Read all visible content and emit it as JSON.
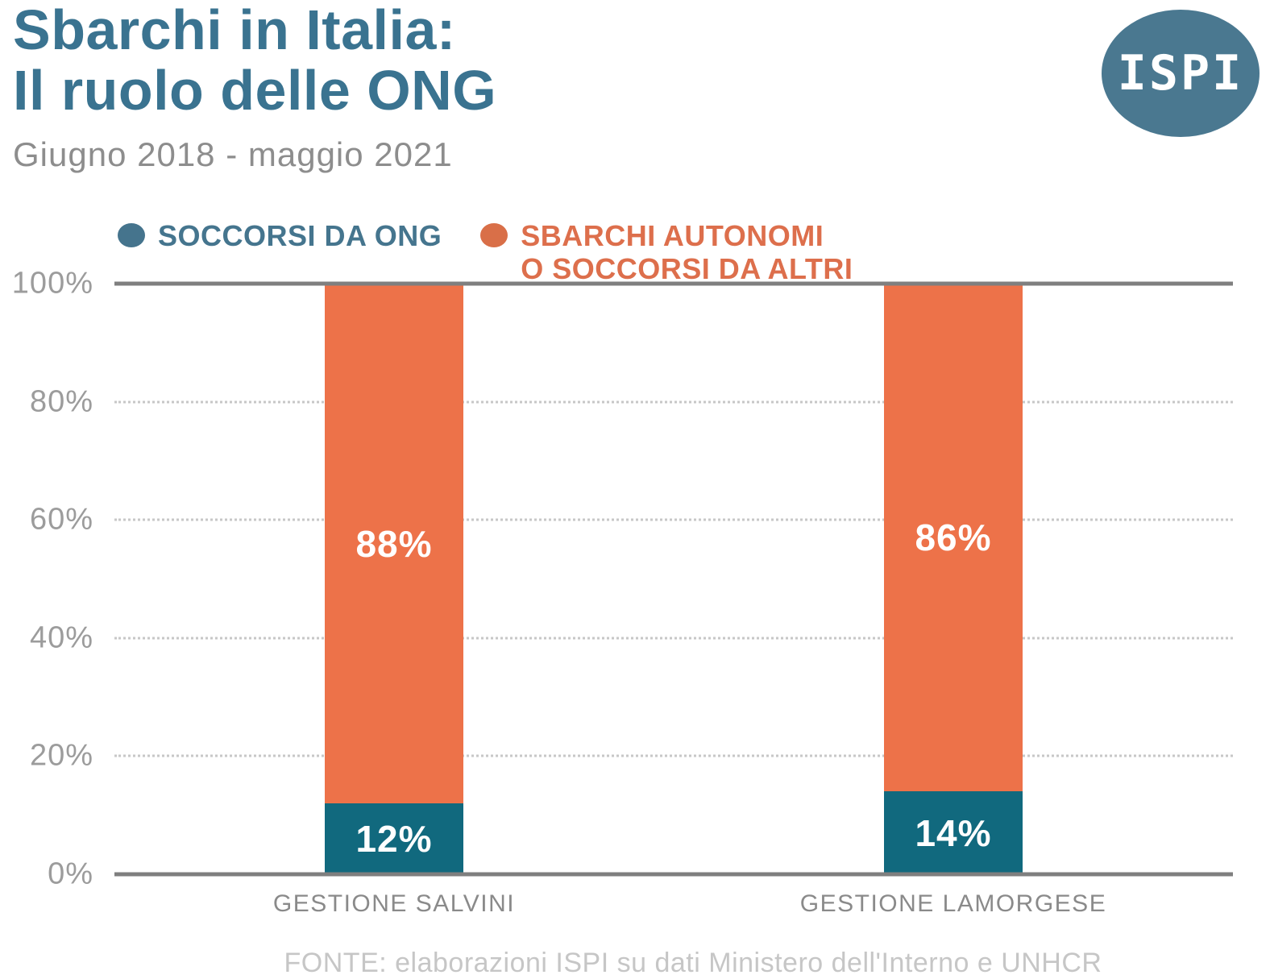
{
  "header": {
    "title_line1": "Sbarchi in Italia:",
    "title_line2": "Il ruolo delle ONG",
    "subtitle": "Giugno 2018 - maggio 2021",
    "logo_text": "ISPI",
    "title_color": "#3a7390",
    "logo_color": "#4a7890"
  },
  "legend": {
    "items": [
      {
        "label": "SOCCORSI DA ONG",
        "dot_color": "#45748d",
        "text_color": "#45758e"
      },
      {
        "label": "SBARCHI AUTONOMI\nO SOCCORSI DA ALTRI",
        "dot_color": "#d96f48",
        "text_color": "#dd6f4c"
      }
    ]
  },
  "chart_data": {
    "type": "bar",
    "stacked": true,
    "title": "Sbarchi in Italia: Il ruolo delle ONG",
    "subtitle": "Giugno 2018 - maggio 2021",
    "categories": [
      "GESTIONE SALVINI",
      "GESTIONE LAMORGESE"
    ],
    "series": [
      {
        "name": "SOCCORSI DA ONG",
        "color": "#11697e",
        "values": [
          12,
          14
        ]
      },
      {
        "name": "SBARCHI AUTONOMI O SOCCORSI DA ALTRI",
        "color": "#ed7249",
        "values": [
          88,
          86
        ]
      }
    ],
    "value_label_suffix": "%",
    "xlabel": "",
    "ylabel": "",
    "ylim": [
      0,
      100
    ],
    "yticks": [
      "100%",
      "80%",
      "60%",
      "40%",
      "20%",
      "0%"
    ],
    "grid": "horizontal dotted, solid rules at 0% and 100%",
    "legend_position": "top"
  },
  "footer": {
    "source": "FONTE: elaborazioni ISPI su dati Ministero dell'Interno e UNHCR"
  }
}
